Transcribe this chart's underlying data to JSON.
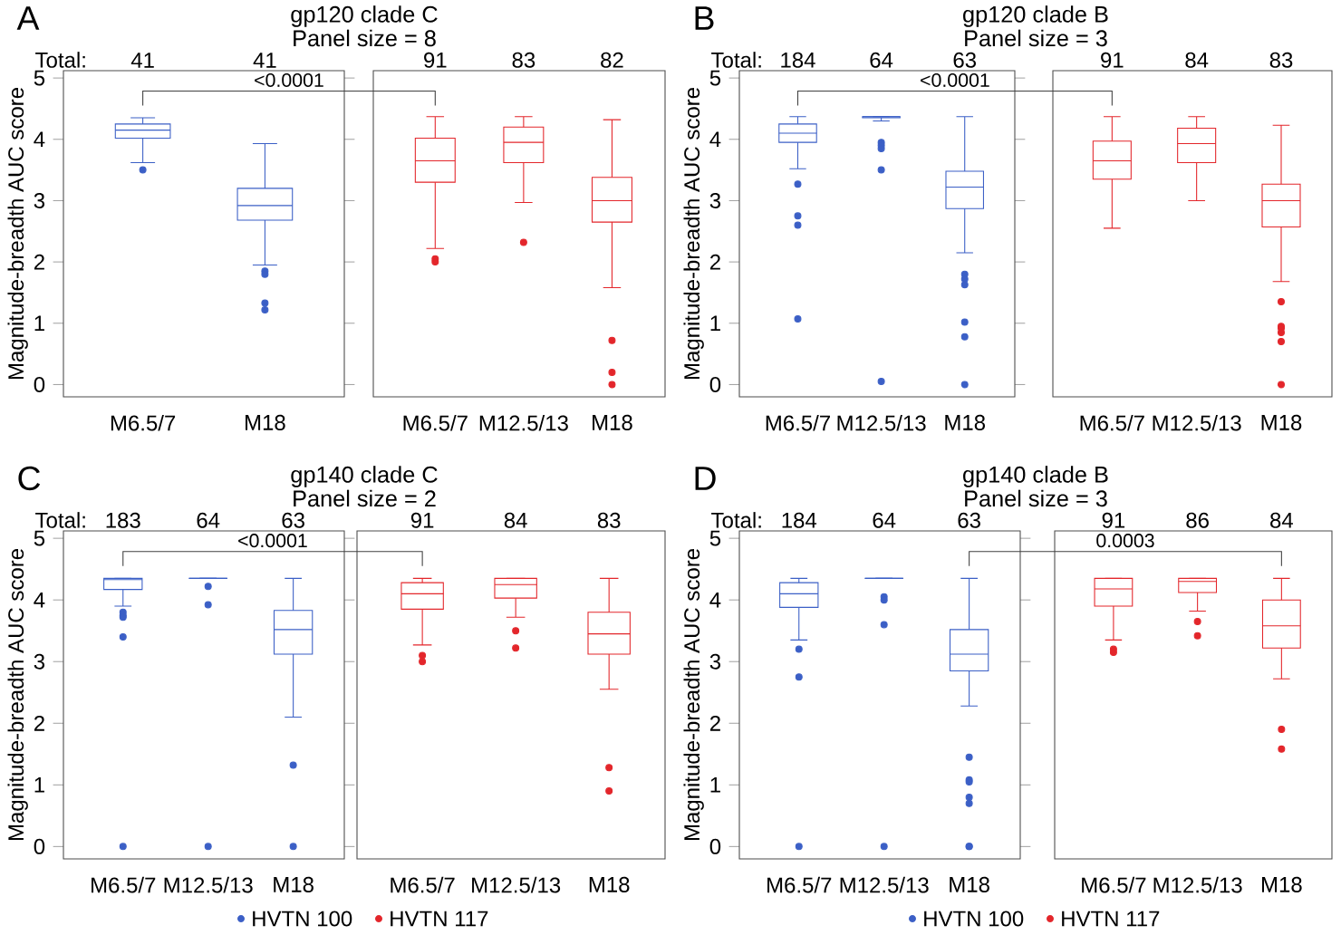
{
  "chart_data": [
    {
      "type": "box",
      "title": "gp120 clade C",
      "subtitle": "Panel size = 8",
      "ylabel": "Magnitude-breadth AUC score",
      "annotations": [
        "A",
        "Total:",
        "<0.0001",
        "41",
        "41"
      ],
      "categories": [
        "M6.5/7",
        "M18"
      ],
      "ylim": [
        -0.2,
        5.12
      ],
      "yticks": [
        0,
        1,
        2,
        3,
        4,
        5
      ],
      "series": [
        {
          "color": "#3b5fc6",
          "boxes": [
            {
              "low": 3.62,
              "q1": 4.02,
              "median": 4.15,
              "q3": 4.25,
              "high": 4.35,
              "outliers": [
                3.5
              ]
            },
            {
              "low": 1.95,
              "q1": 2.68,
              "median": 2.92,
              "q3": 3.2,
              "high": 3.93,
              "outliers": [
                1.85,
                1.8,
                1.33,
                1.22
              ]
            }
          ]
        }
      ]
    },
    {
      "type": "box",
      "annotations": [
        "91",
        "83",
        "82"
      ],
      "categories": [
        "M6.5/7",
        "M12.5/13",
        "M18"
      ],
      "ylim": [
        -0.2,
        5.12
      ],
      "yticks": [
        0,
        1,
        2,
        3,
        4,
        5
      ],
      "tick_labels": "x",
      "series": [
        {
          "color": "#e3262b",
          "boxes": [
            {
              "low": 2.22,
              "q1": 3.3,
              "median": 3.65,
              "q3": 4.02,
              "high": 4.37,
              "outliers": [
                2.05,
                2.0
              ]
            },
            {
              "low": 2.97,
              "q1": 3.62,
              "median": 3.95,
              "q3": 4.2,
              "high": 4.37,
              "outliers": [
                2.32
              ]
            },
            {
              "low": 1.58,
              "q1": 2.65,
              "median": 3.0,
              "q3": 3.38,
              "high": 4.32,
              "outliers": [
                0.72,
                0.2,
                0.0
              ]
            }
          ]
        }
      ]
    },
    {
      "type": "box",
      "title": "gp120 clade B",
      "subtitle": "Panel size = 3",
      "ylabel": "Magnitude-breadth AUC score",
      "annotations": [
        "B",
        "Total:",
        "<0.0001",
        "184",
        "64",
        "63"
      ],
      "categories": [
        "M6.5/7",
        "M12.5/13",
        "M18"
      ],
      "ylim": [
        -0.2,
        5.12
      ],
      "yticks": [
        0,
        1,
        2,
        3,
        4,
        5
      ],
      "series": [
        {
          "color": "#3b5fc6",
          "boxes": [
            {
              "low": 3.52,
              "q1": 3.95,
              "median": 4.1,
              "q3": 4.25,
              "high": 4.37,
              "outliers": [
                3.27,
                2.75,
                2.6,
                1.07
              ]
            },
            {
              "low": 4.3,
              "q1": 4.35,
              "median": 4.37,
              "q3": 4.37,
              "high": 4.37,
              "outliers": [
                3.95,
                3.9,
                3.85,
                3.5,
                0.05
              ]
            },
            {
              "low": 2.15,
              "q1": 2.87,
              "median": 3.22,
              "q3": 3.48,
              "high": 4.37,
              "outliers": [
                1.8,
                1.72,
                1.63,
                1.02,
                0.78,
                0.0
              ]
            }
          ]
        }
      ]
    },
    {
      "type": "box",
      "annotations": [
        "91",
        "84",
        "83"
      ],
      "categories": [
        "M6.5/7",
        "M12.5/13",
        "M18"
      ],
      "ylim": [
        -0.2,
        5.12
      ],
      "yticks": [
        0,
        1,
        2,
        3,
        4,
        5
      ],
      "tick_labels": "x",
      "series": [
        {
          "color": "#e3262b",
          "boxes": [
            {
              "low": 2.55,
              "q1": 3.35,
              "median": 3.65,
              "q3": 3.97,
              "high": 4.37
            },
            {
              "low": 3.0,
              "q1": 3.62,
              "median": 3.93,
              "q3": 4.18,
              "high": 4.37
            },
            {
              "low": 1.68,
              "q1": 2.57,
              "median": 3.0,
              "q3": 3.27,
              "high": 4.23,
              "outliers": [
                1.35,
                0.95,
                0.92,
                0.85,
                0.7,
                0.0
              ]
            }
          ]
        }
      ]
    },
    {
      "type": "box",
      "title": "gp140 clade C",
      "subtitle": "Panel size = 2",
      "ylabel": "Magnitude-breadth AUC score",
      "annotations": [
        "C",
        "Total:",
        "<0.0001",
        "183",
        "64",
        "63"
      ],
      "categories": [
        "M6.5/7",
        "M12.5/13",
        "M18"
      ],
      "ylim": [
        -0.2,
        5.12
      ],
      "yticks": [
        0,
        1,
        2,
        3,
        4,
        5
      ],
      "legend": "bottom",
      "series": [
        {
          "name": "HVTN 100",
          "color": "#3b5fc6",
          "boxes": [
            {
              "low": 3.9,
              "q1": 4.17,
              "median": 4.33,
              "q3": 4.35,
              "high": 4.35,
              "outliers": [
                3.8,
                3.75,
                3.72,
                3.4,
                0.0
              ]
            },
            {
              "low": 4.35,
              "q1": 4.35,
              "median": 4.35,
              "q3": 4.35,
              "high": 4.35,
              "outliers": [
                4.22,
                3.92,
                0.0
              ]
            },
            {
              "low": 2.1,
              "q1": 3.12,
              "median": 3.52,
              "q3": 3.83,
              "high": 4.35,
              "outliers": [
                1.32,
                0.0
              ]
            }
          ]
        }
      ]
    },
    {
      "type": "box",
      "annotations": [
        "91",
        "84",
        "83"
      ],
      "categories": [
        "M6.5/7",
        "M12.5/13",
        "M18"
      ],
      "ylim": [
        -0.2,
        5.12
      ],
      "yticks": [
        0,
        1,
        2,
        3,
        4,
        5
      ],
      "tick_labels": "x",
      "legend": "bottom",
      "series": [
        {
          "name": "HVTN 117",
          "color": "#e3262b",
          "boxes": [
            {
              "low": 3.27,
              "q1": 3.85,
              "median": 4.1,
              "q3": 4.28,
              "high": 4.35,
              "outliers": [
                3.1,
                3.0
              ]
            },
            {
              "low": 3.72,
              "q1": 4.03,
              "median": 4.25,
              "q3": 4.35,
              "high": 4.35,
              "outliers": [
                3.5,
                3.22
              ]
            },
            {
              "low": 2.55,
              "q1": 3.12,
              "median": 3.45,
              "q3": 3.8,
              "high": 4.35,
              "outliers": [
                1.28,
                0.9
              ]
            }
          ]
        }
      ]
    },
    {
      "type": "box",
      "title": "gp140 clade B",
      "subtitle": "Panel size = 3",
      "ylabel": "Magnitude-breadth AUC score",
      "annotations": [
        "D",
        "Total:",
        "0.0003",
        "184",
        "64",
        "63"
      ],
      "categories": [
        "M6.5/7",
        "M12.5/13",
        "M18"
      ],
      "ylim": [
        -0.2,
        5.12
      ],
      "yticks": [
        0,
        1,
        2,
        3,
        4,
        5
      ],
      "legend": "bottom",
      "series": [
        {
          "name": "HVTN 100",
          "color": "#3b5fc6",
          "boxes": [
            {
              "low": 3.35,
              "q1": 3.88,
              "median": 4.1,
              "q3": 4.28,
              "high": 4.35,
              "outliers": [
                3.2,
                2.75,
                0.0
              ]
            },
            {
              "low": 4.35,
              "q1": 4.35,
              "median": 4.35,
              "q3": 4.35,
              "high": 4.35,
              "outliers": [
                4.05,
                4.0,
                3.6,
                0.0
              ]
            },
            {
              "low": 2.28,
              "q1": 2.85,
              "median": 3.12,
              "q3": 3.52,
              "high": 4.35,
              "outliers": [
                1.45,
                1.08,
                1.05,
                0.8,
                0.7,
                0.0,
                0.0
              ]
            }
          ]
        }
      ]
    },
    {
      "type": "box",
      "annotations": [
        "91",
        "86",
        "84"
      ],
      "categories": [
        "M6.5/7",
        "M12.5/13",
        "M18"
      ],
      "ylim": [
        -0.2,
        5.12
      ],
      "yticks": [
        0,
        1,
        2,
        3,
        4,
        5
      ],
      "tick_labels": "x",
      "legend": "bottom",
      "series": [
        {
          "name": "HVTN 117",
          "color": "#e3262b",
          "boxes": [
            {
              "low": 3.35,
              "q1": 3.9,
              "median": 4.18,
              "q3": 4.35,
              "high": 4.35,
              "outliers": [
                3.2,
                3.15
              ]
            },
            {
              "low": 3.82,
              "q1": 4.12,
              "median": 4.3,
              "q3": 4.35,
              "high": 4.35,
              "outliers": [
                3.65,
                3.42
              ]
            },
            {
              "low": 2.72,
              "q1": 3.22,
              "median": 3.58,
              "q3": 4.0,
              "high": 4.35,
              "outliers": [
                1.9,
                1.58
              ]
            }
          ]
        }
      ]
    }
  ]
}
